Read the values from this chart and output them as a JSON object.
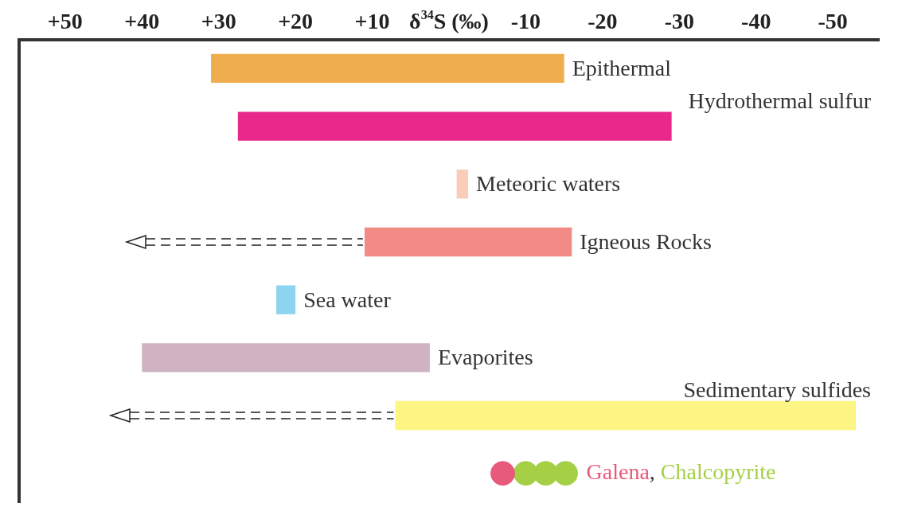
{
  "chart_data": {
    "type": "bar",
    "orientation": "horizontal",
    "xlabel": "δ$^{34}$S (‰)",
    "categories": [
      "Epithermal",
      "Hydrothermal sulfur",
      "Meteoric waters",
      "Igneous Rocks",
      "Sea water",
      "Evaporites",
      "Sedimentary sulfides",
      null
    ],
    "xlim": [
      56,
      -56
    ],
    "xticks": [
      {
        "value": 50,
        "label": "+50"
      },
      {
        "value": 40,
        "label": "+40"
      },
      {
        "value": 30,
        "label": "+30"
      },
      {
        "value": 20,
        "label": "+20"
      },
      {
        "value": 10,
        "label": "+10"
      },
      -10,
      -20,
      -30,
      -40,
      -50
    ],
    "series": [
      {
        "type": "bar",
        "base": [
          31,
          27.5,
          -1,
          11,
          22.5,
          40,
          7,
          null
        ],
        "values": [
          -46,
          -56.5,
          -1.5,
          -27,
          -2.5,
          -37.5,
          -60,
          null
        ],
        "colors": [
          "#f0ad4e",
          "#e9288c",
          "#f9cdb9",
          "#f28b85",
          "#8dd4f0",
          "#cfb3c3",
          "#fdf583",
          null
        ]
      },
      {
        "type": "scatter",
        "name": "Galena",
        "color": "#e85a7a",
        "x": [
          null
        ],
        "values": [
          -7
        ]
      },
      {
        "type": "scatter",
        "name": "Chalcopyrite",
        "color": "#a5d046",
        "x": [
          null,
          null,
          null
        ],
        "values": [
          -10,
          -12.6,
          -15.2
        ]
      }
    ],
    "annotations": [
      ","
    ],
    "grid": false,
    "legend": false
  }
}
